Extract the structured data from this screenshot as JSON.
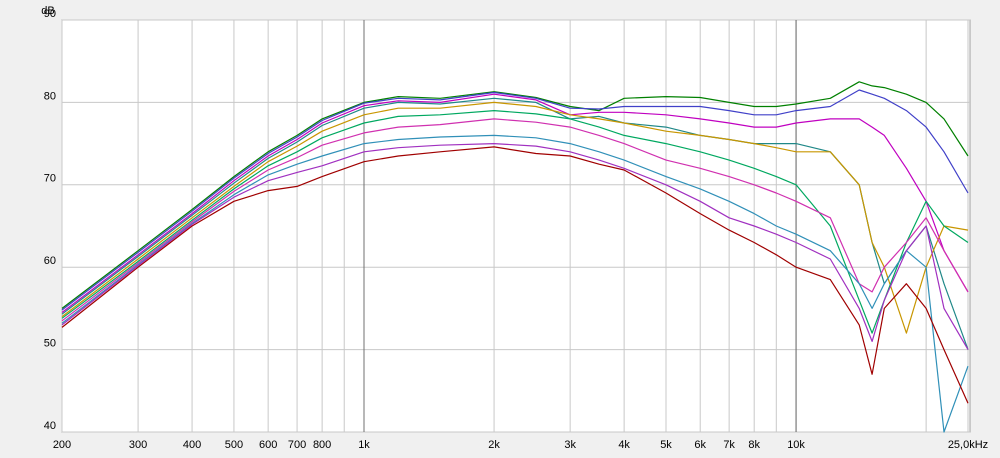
{
  "chart_data": {
    "type": "line",
    "ylabel": "dB",
    "xscale": "log",
    "grid": true,
    "x": [
      200,
      300,
      400,
      500,
      600,
      700,
      800,
      1000,
      1200,
      1500,
      2000,
      2500,
      3000,
      3500,
      4000,
      5000,
      6000,
      7000,
      8000,
      9000,
      10000,
      12000,
      14000,
      15000,
      16000,
      18000,
      20000,
      22000,
      25000
    ],
    "xlim": [
      200,
      25000
    ],
    "xticks": [
      200,
      300,
      400,
      500,
      600,
      700,
      800,
      {
        "value": 1000,
        "label": "1k"
      },
      {
        "value": 2000,
        "label": "2k"
      },
      {
        "value": 3000,
        "label": "3k"
      },
      {
        "value": 4000,
        "label": "4k"
      },
      {
        "value": 5000,
        "label": "5k"
      },
      {
        "value": 6000,
        "label": "6k"
      },
      {
        "value": 7000,
        "label": "7k"
      },
      {
        "value": 8000,
        "label": "8k"
      },
      {
        "value": 10000,
        "label": "10k"
      },
      {
        "value": 25000,
        "label": "25,0kHz"
      }
    ],
    "xminor": [
      900,
      9000,
      20000
    ],
    "xmajor": [
      1000,
      10000
    ],
    "ylim": [
      40,
      90
    ],
    "yticks": [
      40,
      50,
      60,
      70,
      80,
      90
    ],
    "series": [
      {
        "color": "#008000",
        "values": [
          55,
          62,
          67,
          71,
          74,
          76,
          78,
          80,
          80.7,
          80.5,
          81.3,
          80.6,
          79.5,
          79,
          80.5,
          80.7,
          80.6,
          80,
          79.5,
          79.5,
          79.8,
          80.5,
          82.5,
          82,
          81.8,
          81,
          80,
          78,
          73.5
        ]
      },
      {
        "color": "#4040c8",
        "values": [
          54.8,
          61.8,
          66.8,
          70.8,
          73.8,
          75.8,
          77.8,
          79.9,
          80.5,
          80.3,
          81.2,
          80.5,
          79.3,
          79.2,
          79.5,
          79.5,
          79.5,
          79,
          78.5,
          78.5,
          79,
          79.5,
          81.5,
          81,
          80.5,
          79,
          77,
          74,
          69
        ]
      },
      {
        "color": "#c000c0",
        "values": [
          54.5,
          61.5,
          66.5,
          70.5,
          73.5,
          75.5,
          77.5,
          79.6,
          80.2,
          80,
          81,
          80.3,
          78.5,
          78.8,
          78.8,
          78.5,
          78,
          77.5,
          77,
          77,
          77.5,
          78,
          78,
          77,
          76,
          72,
          68,
          62,
          57
        ]
      },
      {
        "color": "#208888",
        "values": [
          54.3,
          61.3,
          66.3,
          70.2,
          73.2,
          75.2,
          77.2,
          79.3,
          80,
          79.8,
          80.5,
          80,
          78,
          78.3,
          77.5,
          77,
          76,
          75.5,
          75,
          75,
          75,
          74,
          70,
          63,
          58,
          62,
          65,
          58,
          50
        ]
      },
      {
        "color": "#c89600",
        "values": [
          54,
          61,
          66,
          69.8,
          72.8,
          74.7,
          76.5,
          78.5,
          79.3,
          79.3,
          80,
          79.5,
          78.5,
          78,
          77.5,
          76.5,
          76,
          75.5,
          75,
          74.5,
          74,
          74,
          70,
          63,
          60,
          52,
          60,
          65,
          64.5
        ]
      },
      {
        "color": "#00a860",
        "values": [
          53.8,
          60.7,
          65.7,
          69.5,
          72.3,
          74,
          75.7,
          77.5,
          78.3,
          78.5,
          79,
          78.6,
          78,
          77,
          76,
          75,
          74,
          73,
          72,
          71,
          70,
          65,
          56,
          52,
          56,
          63,
          68,
          65,
          63
        ]
      },
      {
        "color": "#d030b0",
        "values": [
          53.5,
          60.5,
          65.5,
          69.2,
          71.8,
          73.3,
          74.8,
          76.3,
          77,
          77.3,
          78,
          77.6,
          77,
          76,
          75,
          73,
          72,
          71,
          70,
          69,
          68,
          66,
          58,
          57,
          60,
          63,
          66,
          62,
          57
        ]
      },
      {
        "color": "#3090b8",
        "values": [
          53.2,
          60.3,
          65.3,
          68.8,
          71.2,
          72.5,
          73.5,
          75,
          75.5,
          75.8,
          76,
          75.7,
          75,
          74,
          73,
          71,
          69.5,
          68,
          66.5,
          65,
          64,
          62,
          58,
          55,
          58,
          62,
          60,
          40,
          48
        ]
      },
      {
        "color": "#a030c0",
        "values": [
          53,
          60.2,
          65.2,
          68.5,
          70.5,
          71.5,
          72.3,
          74,
          74.5,
          74.8,
          75,
          74.7,
          74,
          73,
          72,
          70,
          68,
          66,
          65,
          64,
          63,
          61,
          55,
          51,
          56,
          62,
          65,
          55,
          50
        ]
      },
      {
        "color": "#a00000",
        "values": [
          52.7,
          60,
          65,
          68,
          69.3,
          69.8,
          71,
          72.8,
          73.5,
          74,
          74.6,
          73.8,
          73.5,
          72.5,
          71.8,
          69,
          66.5,
          64.5,
          63,
          61.5,
          60,
          58.5,
          53,
          47,
          55,
          58,
          55,
          50,
          43.5
        ]
      }
    ]
  }
}
